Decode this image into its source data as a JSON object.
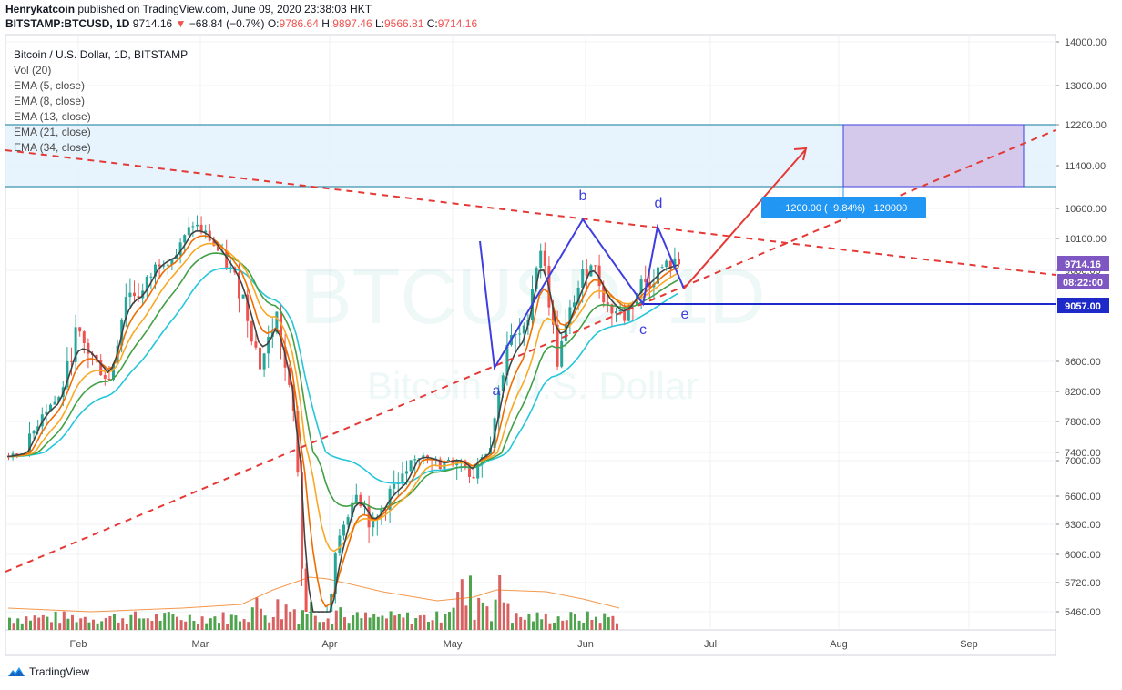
{
  "header": {
    "author": "Henrykatcoin",
    "published_text": "published on TradingView.com, June 09, 2020 23:38:03 HKT",
    "symbol": "BITSTAMP:BTCUSD, 1D",
    "last": "9714.16",
    "change": "−68.84 (−0.7%)",
    "o_label": "O:",
    "o_val": "9786.64",
    "h_label": "H:",
    "h_val": "9897.46",
    "l_label": "L:",
    "l_val": "9566.81",
    "c_label": "C:",
    "c_val": "9714.16"
  },
  "legend": {
    "title": "Bitcoin / U.S. Dollar, 1D, BITSTAMP",
    "items": [
      "Vol (20)",
      "EMA (5, close)",
      "EMA (8, close)",
      "EMA (13, close)",
      "EMA (21, close)",
      "EMA (34, close)"
    ]
  },
  "watermark": {
    "big": "BTCUSD, 1D",
    "small": "Bitcoin / U.S. Dollar"
  },
  "footer": {
    "brand": "TradingView"
  },
  "colors": {
    "up": "#26a69a",
    "down": "#ef5350",
    "vol_up": "#3a9a3a",
    "vol_down": "#d45050",
    "ema5": "#424242",
    "ema8": "#ef6c00",
    "ema13": "#f9a825",
    "ema21": "#43a047",
    "ema34": "#26c6da",
    "pattern": "#3f3fe0",
    "trend": "#e53935",
    "zone": "#e3f2fd",
    "box": "#d1c4e9"
  },
  "chart_data": {
    "type": "candlestick",
    "symbol": "BITSTAMP:BTCUSD",
    "interval": "1D",
    "x_ticks": [
      "Feb",
      "Mar",
      "Apr",
      "May",
      "Jun",
      "Jul",
      "Aug",
      "Sep"
    ],
    "y_ticks": [
      14000,
      13000,
      12200,
      11400,
      10600,
      10100,
      9600,
      8600,
      8200,
      7800,
      7400,
      7000,
      6600,
      6300,
      6000,
      5720,
      5460
    ],
    "price_labels": [
      {
        "text": "9714.16",
        "color": "#7e57c2"
      },
      {
        "text": "08:22:00",
        "color": "#7e57c2"
      },
      {
        "text": "9057.00",
        "color": "#1e2ac8"
      }
    ],
    "horizontal_line": 9057,
    "shaded_zone": {
      "from": 11000,
      "to": 12200
    },
    "measure_label": "−1200.00 (−9.84%) −120000",
    "pattern_labels": [
      "a",
      "b",
      "c",
      "d",
      "e"
    ],
    "pattern_points": [
      {
        "label": "a",
        "date": "2020-05-10",
        "price": 8150
      },
      {
        "label": "b",
        "date": "2020-06-01",
        "price": 10430
      },
      {
        "label": "c",
        "date": "2020-06-15",
        "price": 9057
      },
      {
        "label": "d",
        "date": "2020-06-21",
        "price": 10330
      },
      {
        "label": "e",
        "date": "2020-06-27",
        "price": 9240
      }
    ],
    "price_series": [
      {
        "date": "2020-01-01",
        "close": 7200
      },
      {
        "date": "2020-01-05",
        "close": 7400
      },
      {
        "date": "2020-01-09",
        "close": 7950
      },
      {
        "date": "2020-01-13",
        "close": 8100
      },
      {
        "date": "2020-01-17",
        "close": 8900
      },
      {
        "date": "2020-01-21",
        "close": 8650
      },
      {
        "date": "2020-01-25",
        "close": 8350
      },
      {
        "date": "2020-01-29",
        "close": 9350
      },
      {
        "date": "2020-02-02",
        "close": 9350
      },
      {
        "date": "2020-02-06",
        "close": 9750
      },
      {
        "date": "2020-02-10",
        "close": 9850
      },
      {
        "date": "2020-02-14",
        "close": 10350
      },
      {
        "date": "2020-02-18",
        "close": 10100
      },
      {
        "date": "2020-02-22",
        "close": 9700
      },
      {
        "date": "2020-02-26",
        "close": 9300
      },
      {
        "date": "2020-03-01",
        "close": 8550
      },
      {
        "date": "2020-03-05",
        "close": 9100
      },
      {
        "date": "2020-03-09",
        "close": 7900
      },
      {
        "date": "2020-03-12",
        "close": 4900
      },
      {
        "date": "2020-03-16",
        "close": 5000
      },
      {
        "date": "2020-03-20",
        "close": 6200
      },
      {
        "date": "2020-03-24",
        "close": 6700
      },
      {
        "date": "2020-03-28",
        "close": 6250
      },
      {
        "date": "2020-04-01",
        "close": 6650
      },
      {
        "date": "2020-04-05",
        "close": 6800
      },
      {
        "date": "2020-04-09",
        "close": 7300
      },
      {
        "date": "2020-04-13",
        "close": 6900
      },
      {
        "date": "2020-04-17",
        "close": 7050
      },
      {
        "date": "2020-04-21",
        "close": 6850
      },
      {
        "date": "2020-04-25",
        "close": 7550
      },
      {
        "date": "2020-04-29",
        "close": 8800
      },
      {
        "date": "2020-05-03",
        "close": 8900
      },
      {
        "date": "2020-05-07",
        "close": 9950
      },
      {
        "date": "2020-05-11",
        "close": 8600
      },
      {
        "date": "2020-05-15",
        "close": 9300
      },
      {
        "date": "2020-05-19",
        "close": 9750
      },
      {
        "date": "2020-05-23",
        "close": 9200
      },
      {
        "date": "2020-05-27",
        "close": 9100
      },
      {
        "date": "2020-05-31",
        "close": 9450
      },
      {
        "date": "2020-06-02",
        "close": 9500
      },
      {
        "date": "2020-06-05",
        "close": 9650
      },
      {
        "date": "2020-06-09",
        "close": 9714
      }
    ]
  }
}
